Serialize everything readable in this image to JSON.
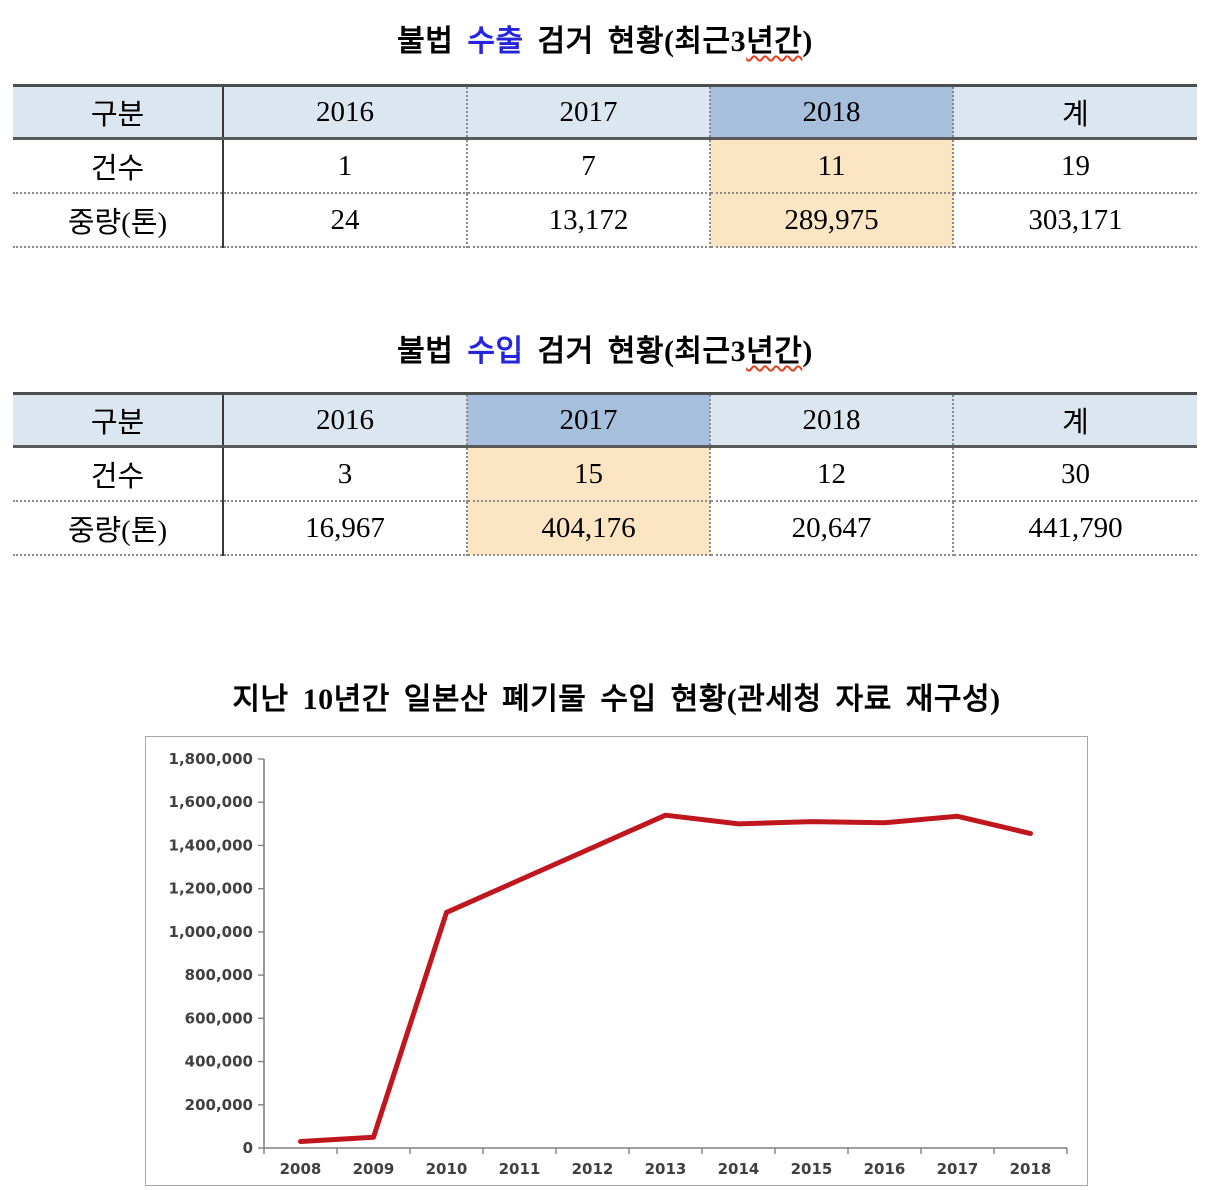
{
  "document": {
    "section1": {
      "title": {
        "lead": "불법 ",
        "keyword": "수출",
        "mid": " 검거 현황(최근3",
        "underlined": "년간",
        "close": ")"
      },
      "table": {
        "columns": [
          "구분",
          "2016",
          "2017",
          "2018",
          "계"
        ],
        "highlighted_column": "2018",
        "rows": [
          {
            "label": "건수",
            "values": [
              "1",
              "7",
              "11",
              "19"
            ]
          },
          {
            "label": "중량(톤)",
            "values": [
              "24",
              "13,172",
              "289,975",
              "303,171"
            ]
          }
        ]
      }
    },
    "section2": {
      "title": {
        "lead": "불법 ",
        "keyword": "수입",
        "mid": " 검거 현황(최근3",
        "underlined": "년간",
        "close": ")"
      },
      "table": {
        "columns": [
          "구분",
          "2016",
          "2017",
          "2018",
          "계"
        ],
        "highlighted_column": "2017",
        "rows": [
          {
            "label": "건수",
            "values": [
              "3",
              "15",
              "12",
              "30"
            ]
          },
          {
            "label": "중량(톤)",
            "values": [
              "16,967",
              "404,176",
              "20,647",
              "441,790"
            ]
          }
        ]
      }
    }
  },
  "colors": {
    "header_bg": "#DCE6F1",
    "header_highlight_bg": "#A5BFDC",
    "cell_highlight_bg": "#FBE5C3",
    "keyword_blue": "#2525E0",
    "axis_gray": "#808080",
    "label_gray": "#404040",
    "line_red": "#C0161E"
  },
  "chart_data": {
    "type": "line",
    "title": "지난 10년간 일본산 폐기물 수입 현황(관세청 자료 재구성)",
    "categories": [
      "2008",
      "2009",
      "2010",
      "2011",
      "2012",
      "2013",
      "2014",
      "2015",
      "2016",
      "2017",
      "2018"
    ],
    "values": [
      30000,
      50000,
      1090000,
      1240000,
      1390000,
      1540000,
      1500000,
      1510000,
      1505000,
      1535000,
      1455000
    ],
    "xlabel": "",
    "ylabel": "",
    "ylim": [
      0,
      1800000
    ],
    "ytick_step": 200000,
    "ytick_labels": [
      "0",
      "200,000",
      "400,000",
      "600,000",
      "800,000",
      "1,000,000",
      "1,200,000",
      "1,400,000",
      "1,600,000",
      "1,800,000"
    ],
    "grid": false,
    "legend": false,
    "line_color": "#C0161E"
  }
}
